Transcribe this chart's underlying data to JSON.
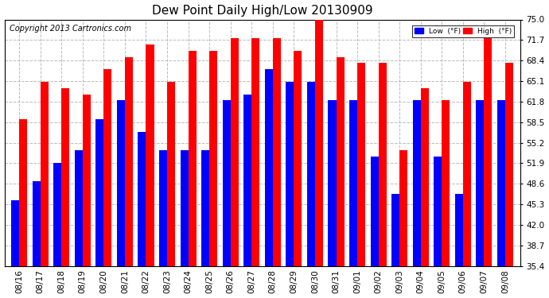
{
  "title": "Dew Point Daily High/Low 20130909",
  "copyright": "Copyright 2013 Cartronics.com",
  "legend_low": "Low  (°F)",
  "legend_high": "High  (°F)",
  "dates": [
    "08/16",
    "08/17",
    "08/18",
    "08/19",
    "08/20",
    "08/21",
    "08/22",
    "08/23",
    "08/24",
    "08/25",
    "08/26",
    "08/27",
    "08/28",
    "08/29",
    "08/30",
    "08/31",
    "09/01",
    "09/02",
    "09/03",
    "09/04",
    "09/05",
    "09/06",
    "09/07",
    "09/08"
  ],
  "low": [
    46,
    49,
    52,
    54,
    59,
    62,
    57,
    54,
    54,
    54,
    62,
    63,
    67,
    65,
    65,
    62,
    62,
    53,
    47,
    62,
    53,
    47,
    62,
    62
  ],
  "high": [
    59,
    65,
    64,
    63,
    67,
    69,
    71,
    65,
    70,
    70,
    72,
    72,
    72,
    70,
    76,
    69,
    68,
    68,
    54,
    64,
    62,
    65,
    72,
    68
  ],
  "ymin": 35.4,
  "ymax": 75.0,
  "yticks": [
    35.4,
    38.7,
    42.0,
    45.3,
    48.6,
    51.9,
    55.2,
    58.5,
    61.8,
    65.1,
    68.4,
    71.7,
    75.0
  ],
  "bar_color_low": "#0000ff",
  "bar_color_high": "#ff0000",
  "background_color": "#ffffff",
  "grid_color": "#bbbbbb",
  "title_fontsize": 11,
  "tick_fontsize": 7.5,
  "copyright_fontsize": 7
}
